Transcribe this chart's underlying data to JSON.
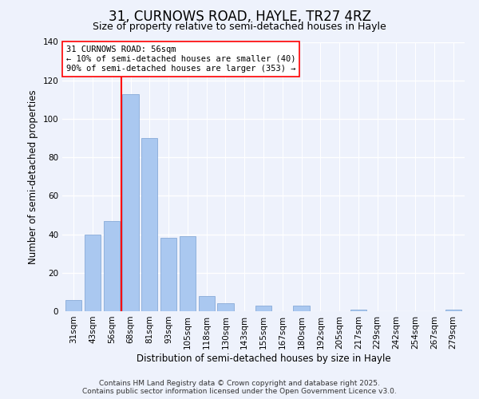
{
  "title": "31, CURNOWS ROAD, HAYLE, TR27 4RZ",
  "subtitle": "Size of property relative to semi-detached houses in Hayle",
  "xlabel": "Distribution of semi-detached houses by size in Hayle",
  "ylabel": "Number of semi-detached properties",
  "categories": [
    "31sqm",
    "43sqm",
    "56sqm",
    "68sqm",
    "81sqm",
    "93sqm",
    "105sqm",
    "118sqm",
    "130sqm",
    "143sqm",
    "155sqm",
    "167sqm",
    "180sqm",
    "192sqm",
    "205sqm",
    "217sqm",
    "229sqm",
    "242sqm",
    "254sqm",
    "267sqm",
    "279sqm"
  ],
  "values": [
    6,
    40,
    47,
    113,
    90,
    38,
    39,
    8,
    4,
    0,
    3,
    0,
    3,
    0,
    0,
    1,
    0,
    0,
    0,
    0,
    1
  ],
  "bar_color": "#aac8f0",
  "bar_edge_color": "#88aad8",
  "vline_x": 2.5,
  "vline_color": "red",
  "annotation_title": "31 CURNOWS ROAD: 56sqm",
  "annotation_line1": "← 10% of semi-detached houses are smaller (40)",
  "annotation_line2": "90% of semi-detached houses are larger (353) →",
  "annotation_box_color": "white",
  "annotation_box_edge_color": "red",
  "ylim": [
    0,
    140
  ],
  "yticks": [
    0,
    20,
    40,
    60,
    80,
    100,
    120,
    140
  ],
  "background_color": "#eef2fc",
  "footer_line1": "Contains HM Land Registry data © Crown copyright and database right 2025.",
  "footer_line2": "Contains public sector information licensed under the Open Government Licence v3.0.",
  "title_fontsize": 12,
  "subtitle_fontsize": 9,
  "axis_label_fontsize": 8.5,
  "tick_fontsize": 7.5,
  "annotation_fontsize": 7.5,
  "footer_fontsize": 6.5
}
